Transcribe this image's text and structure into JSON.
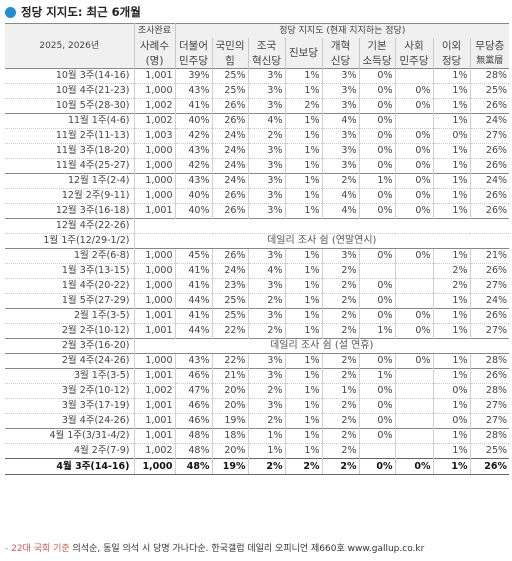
{
  "title": "정당 지지도: 최근 6개월",
  "header": {
    "period_label": "2025, 2026년",
    "sample_label_1": "조사완료",
    "sample_label_2": "사례수",
    "sample_label_3": "(명)",
    "group_label": "정당 지지도 (현재 지지하는 정당)",
    "parties": [
      {
        "line1": "더불어",
        "line2": "민주당"
      },
      {
        "line1": "국민의",
        "line2": "힘"
      },
      {
        "line1": "조국",
        "line2": "혁신당"
      },
      {
        "line1": "진보당",
        "line2": ""
      },
      {
        "line1": "개혁",
        "line2": "신당"
      },
      {
        "line1": "기본",
        "line2": "소득당"
      },
      {
        "line1": "사회",
        "line2": "민주당"
      },
      {
        "line1": "이외",
        "line2": "정당"
      },
      {
        "line1": "무당층",
        "line2": "無黨層"
      }
    ]
  },
  "rows": [
    {
      "period": "10월 3주(14-16)",
      "n": "1,001",
      "v": [
        "39%",
        "25%",
        "3%",
        "1%",
        "3%",
        "0%",
        "",
        "1%",
        "28%"
      ]
    },
    {
      "period": "10월 4주(21-23)",
      "n": "1,000",
      "v": [
        "43%",
        "25%",
        "3%",
        "1%",
        "3%",
        "0%",
        "0%",
        "1%",
        "25%"
      ]
    },
    {
      "period": "10월 5주(28-30)",
      "n": "1,002",
      "v": [
        "41%",
        "26%",
        "3%",
        "2%",
        "3%",
        "0%",
        "0%",
        "1%",
        "26%"
      ]
    },
    {
      "period": "11월 1주(4-6)",
      "n": "1,002",
      "v": [
        "40%",
        "26%",
        "4%",
        "1%",
        "4%",
        "0%",
        "",
        "1%",
        "24%"
      ]
    },
    {
      "period": "11월 2주(11-13)",
      "n": "1,003",
      "v": [
        "42%",
        "24%",
        "2%",
        "1%",
        "3%",
        "0%",
        "0%",
        "0%",
        "27%"
      ]
    },
    {
      "period": "11월 3주(18-20)",
      "n": "1,000",
      "v": [
        "43%",
        "24%",
        "3%",
        "1%",
        "3%",
        "0%",
        "0%",
        "1%",
        "26%"
      ]
    },
    {
      "period": "11월 4주(25-27)",
      "n": "1,000",
      "v": [
        "42%",
        "24%",
        "3%",
        "1%",
        "3%",
        "0%",
        "0%",
        "1%",
        "26%"
      ]
    },
    {
      "period": "12월 1주(2-4)",
      "n": "1,000",
      "v": [
        "43%",
        "24%",
        "3%",
        "1%",
        "2%",
        "1%",
        "0%",
        "1%",
        "24%"
      ]
    },
    {
      "period": "12월 2주(9-11)",
      "n": "1,000",
      "v": [
        "40%",
        "26%",
        "3%",
        "1%",
        "4%",
        "0%",
        "0%",
        "1%",
        "26%"
      ]
    },
    {
      "period": "12월 3주(16-18)",
      "n": "1,001",
      "v": [
        "40%",
        "26%",
        "3%",
        "1%",
        "4%",
        "0%",
        "0%",
        "1%",
        "26%"
      ]
    },
    {
      "period": "12월 4주(22-26)",
      "pause": true
    },
    {
      "period": "1월 1주(12/29-1/2)",
      "pause": true,
      "notice": "데일리 조사 쉼 (연말연시)"
    },
    {
      "period": "1월 2주(6-8)",
      "n": "1,000",
      "v": [
        "45%",
        "26%",
        "3%",
        "1%",
        "3%",
        "0%",
        "0%",
        "1%",
        "21%"
      ]
    },
    {
      "period": "1월 3주(13-15)",
      "n": "1,000",
      "v": [
        "41%",
        "24%",
        "4%",
        "1%",
        "2%",
        "",
        "",
        "2%",
        "26%"
      ]
    },
    {
      "period": "1월 4주(20-22)",
      "n": "1,000",
      "v": [
        "41%",
        "23%",
        "3%",
        "1%",
        "2%",
        "0%",
        "",
        "2%",
        "27%"
      ]
    },
    {
      "period": "1월 5주(27-29)",
      "n": "1,000",
      "v": [
        "44%",
        "25%",
        "2%",
        "1%",
        "2%",
        "0%",
        "",
        "1%",
        "24%"
      ]
    },
    {
      "period": "2월 1주(3-5)",
      "n": "1,001",
      "v": [
        "41%",
        "25%",
        "3%",
        "1%",
        "2%",
        "0%",
        "0%",
        "1%",
        "26%"
      ]
    },
    {
      "period": "2월 2주(10-12)",
      "n": "1,001",
      "v": [
        "44%",
        "22%",
        "2%",
        "1%",
        "2%",
        "1%",
        "0%",
        "1%",
        "27%"
      ]
    },
    {
      "period": "2월 3주(16-20)",
      "pause": true,
      "notice": "데일리 조사 쉼 (설 연휴)"
    },
    {
      "period": "2월 4주(24-26)",
      "n": "1,000",
      "v": [
        "43%",
        "22%",
        "3%",
        "1%",
        "2%",
        "0%",
        "0%",
        "1%",
        "28%"
      ]
    },
    {
      "period": "3월 1주(3-5)",
      "n": "1,001",
      "v": [
        "46%",
        "21%",
        "3%",
        "1%",
        "2%",
        "1%",
        "",
        "1%",
        "26%"
      ]
    },
    {
      "period": "3월 2주(10-12)",
      "n": "1,002",
      "v": [
        "47%",
        "20%",
        "2%",
        "1%",
        "1%",
        "0%",
        "",
        "0%",
        "28%"
      ]
    },
    {
      "period": "3월 3주(17-19)",
      "n": "1,001",
      "v": [
        "46%",
        "20%",
        "3%",
        "1%",
        "2%",
        "0%",
        "",
        "1%",
        "27%"
      ]
    },
    {
      "period": "3월 4주(24-26)",
      "n": "1,001",
      "v": [
        "46%",
        "19%",
        "2%",
        "1%",
        "2%",
        "0%",
        "",
        "0%",
        "27%"
      ]
    },
    {
      "period": "4월 1주(3/31-4/2)",
      "n": "1,001",
      "v": [
        "48%",
        "18%",
        "1%",
        "1%",
        "2%",
        "0%",
        "",
        "1%",
        "28%"
      ]
    },
    {
      "period": "4월 2주(7-9)",
      "n": "1,002",
      "v": [
        "48%",
        "20%",
        "1%",
        "1%",
        "2%",
        "",
        "",
        "1%",
        "25%"
      ]
    },
    {
      "period": "4월 3주(14-16)",
      "n": "1,000",
      "v": [
        "48%",
        "19%",
        "2%",
        "2%",
        "2%",
        "0%",
        "0%",
        "1%",
        "26%"
      ]
    }
  ],
  "footer": {
    "note_red": "- 22대 국회 기준",
    "note_rest": " 의석순, 동일 의석 시 당명 가나다순. 한국갤럽 데일리 오피니언 제660호 www.gallup.co.kr"
  }
}
